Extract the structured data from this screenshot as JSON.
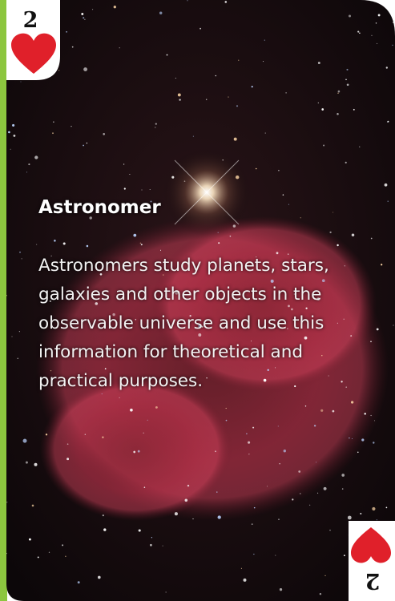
{
  "card": {
    "rank": "2",
    "title": "Astronomer",
    "description": [
      "Astronomers study planets, stars,",
      "galaxies and other objects in the",
      "observable universe and use this",
      "information for theoretical and",
      "practical purposes."
    ]
  }
}
